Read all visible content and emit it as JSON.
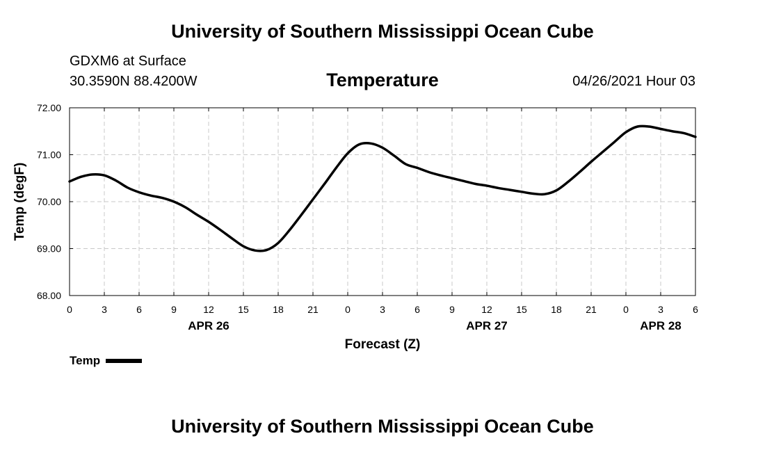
{
  "header": {
    "title": "University of Southern Mississippi Ocean Cube",
    "station": "GDXM6 at Surface",
    "coords": "30.3590N  88.4200W",
    "datetime": "04/26/2021 Hour 03"
  },
  "footer": {
    "title": "University of Southern Mississippi Ocean Cube"
  },
  "legend": {
    "label": "Temp"
  },
  "chart_data": {
    "type": "line",
    "title": "Temperature",
    "xlabel": "Forecast (Z)",
    "ylabel": "Temp (degF)",
    "xlim": [
      0,
      54
    ],
    "ylim": [
      68.0,
      72.0
    ],
    "x_tick_hours": [
      0,
      3,
      6,
      9,
      12,
      15,
      18,
      21,
      24,
      27,
      30,
      33,
      36,
      39,
      42,
      45,
      48,
      51,
      54
    ],
    "x_tick_labels": [
      "0",
      "3",
      "6",
      "9",
      "12",
      "15",
      "18",
      "21",
      "0",
      "3",
      "6",
      "9",
      "12",
      "15",
      "18",
      "21",
      "0",
      "3",
      "6"
    ],
    "y_ticks": [
      68.0,
      69.0,
      70.0,
      71.0,
      72.0
    ],
    "y_tick_labels": [
      "68.00",
      "69.00",
      "70.00",
      "71.00",
      "72.00"
    ],
    "date_labels": [
      {
        "hour": 12,
        "label": "APR 26"
      },
      {
        "hour": 36,
        "label": "APR 27"
      },
      {
        "hour": 51,
        "label": "APR 28"
      }
    ],
    "grid": true,
    "series": [
      {
        "name": "Temp",
        "color": "#000000",
        "x": [
          0,
          1,
          2,
          3,
          4,
          5,
          6,
          7,
          8,
          9,
          10,
          11,
          12,
          13,
          14,
          15,
          16,
          17,
          18,
          19,
          20,
          21,
          22,
          23,
          24,
          25,
          26,
          27,
          28,
          29,
          30,
          31,
          32,
          33,
          34,
          35,
          36,
          37,
          38,
          39,
          40,
          41,
          42,
          43,
          44,
          45,
          46,
          47,
          48,
          49,
          50,
          51,
          52,
          53,
          54
        ],
        "values": [
          70.43,
          70.53,
          70.58,
          70.56,
          70.45,
          70.3,
          70.2,
          70.13,
          70.08,
          70.0,
          69.88,
          69.72,
          69.57,
          69.4,
          69.22,
          69.05,
          68.96,
          68.97,
          69.12,
          69.4,
          69.72,
          70.05,
          70.38,
          70.72,
          71.03,
          71.22,
          71.24,
          71.15,
          70.98,
          70.8,
          70.72,
          70.63,
          70.56,
          70.5,
          70.44,
          70.38,
          70.34,
          70.29,
          70.25,
          70.21,
          70.17,
          70.16,
          70.24,
          70.42,
          70.63,
          70.85,
          71.06,
          71.27,
          71.48,
          71.6,
          71.6,
          71.55,
          71.5,
          71.46,
          71.38
        ]
      }
    ]
  }
}
